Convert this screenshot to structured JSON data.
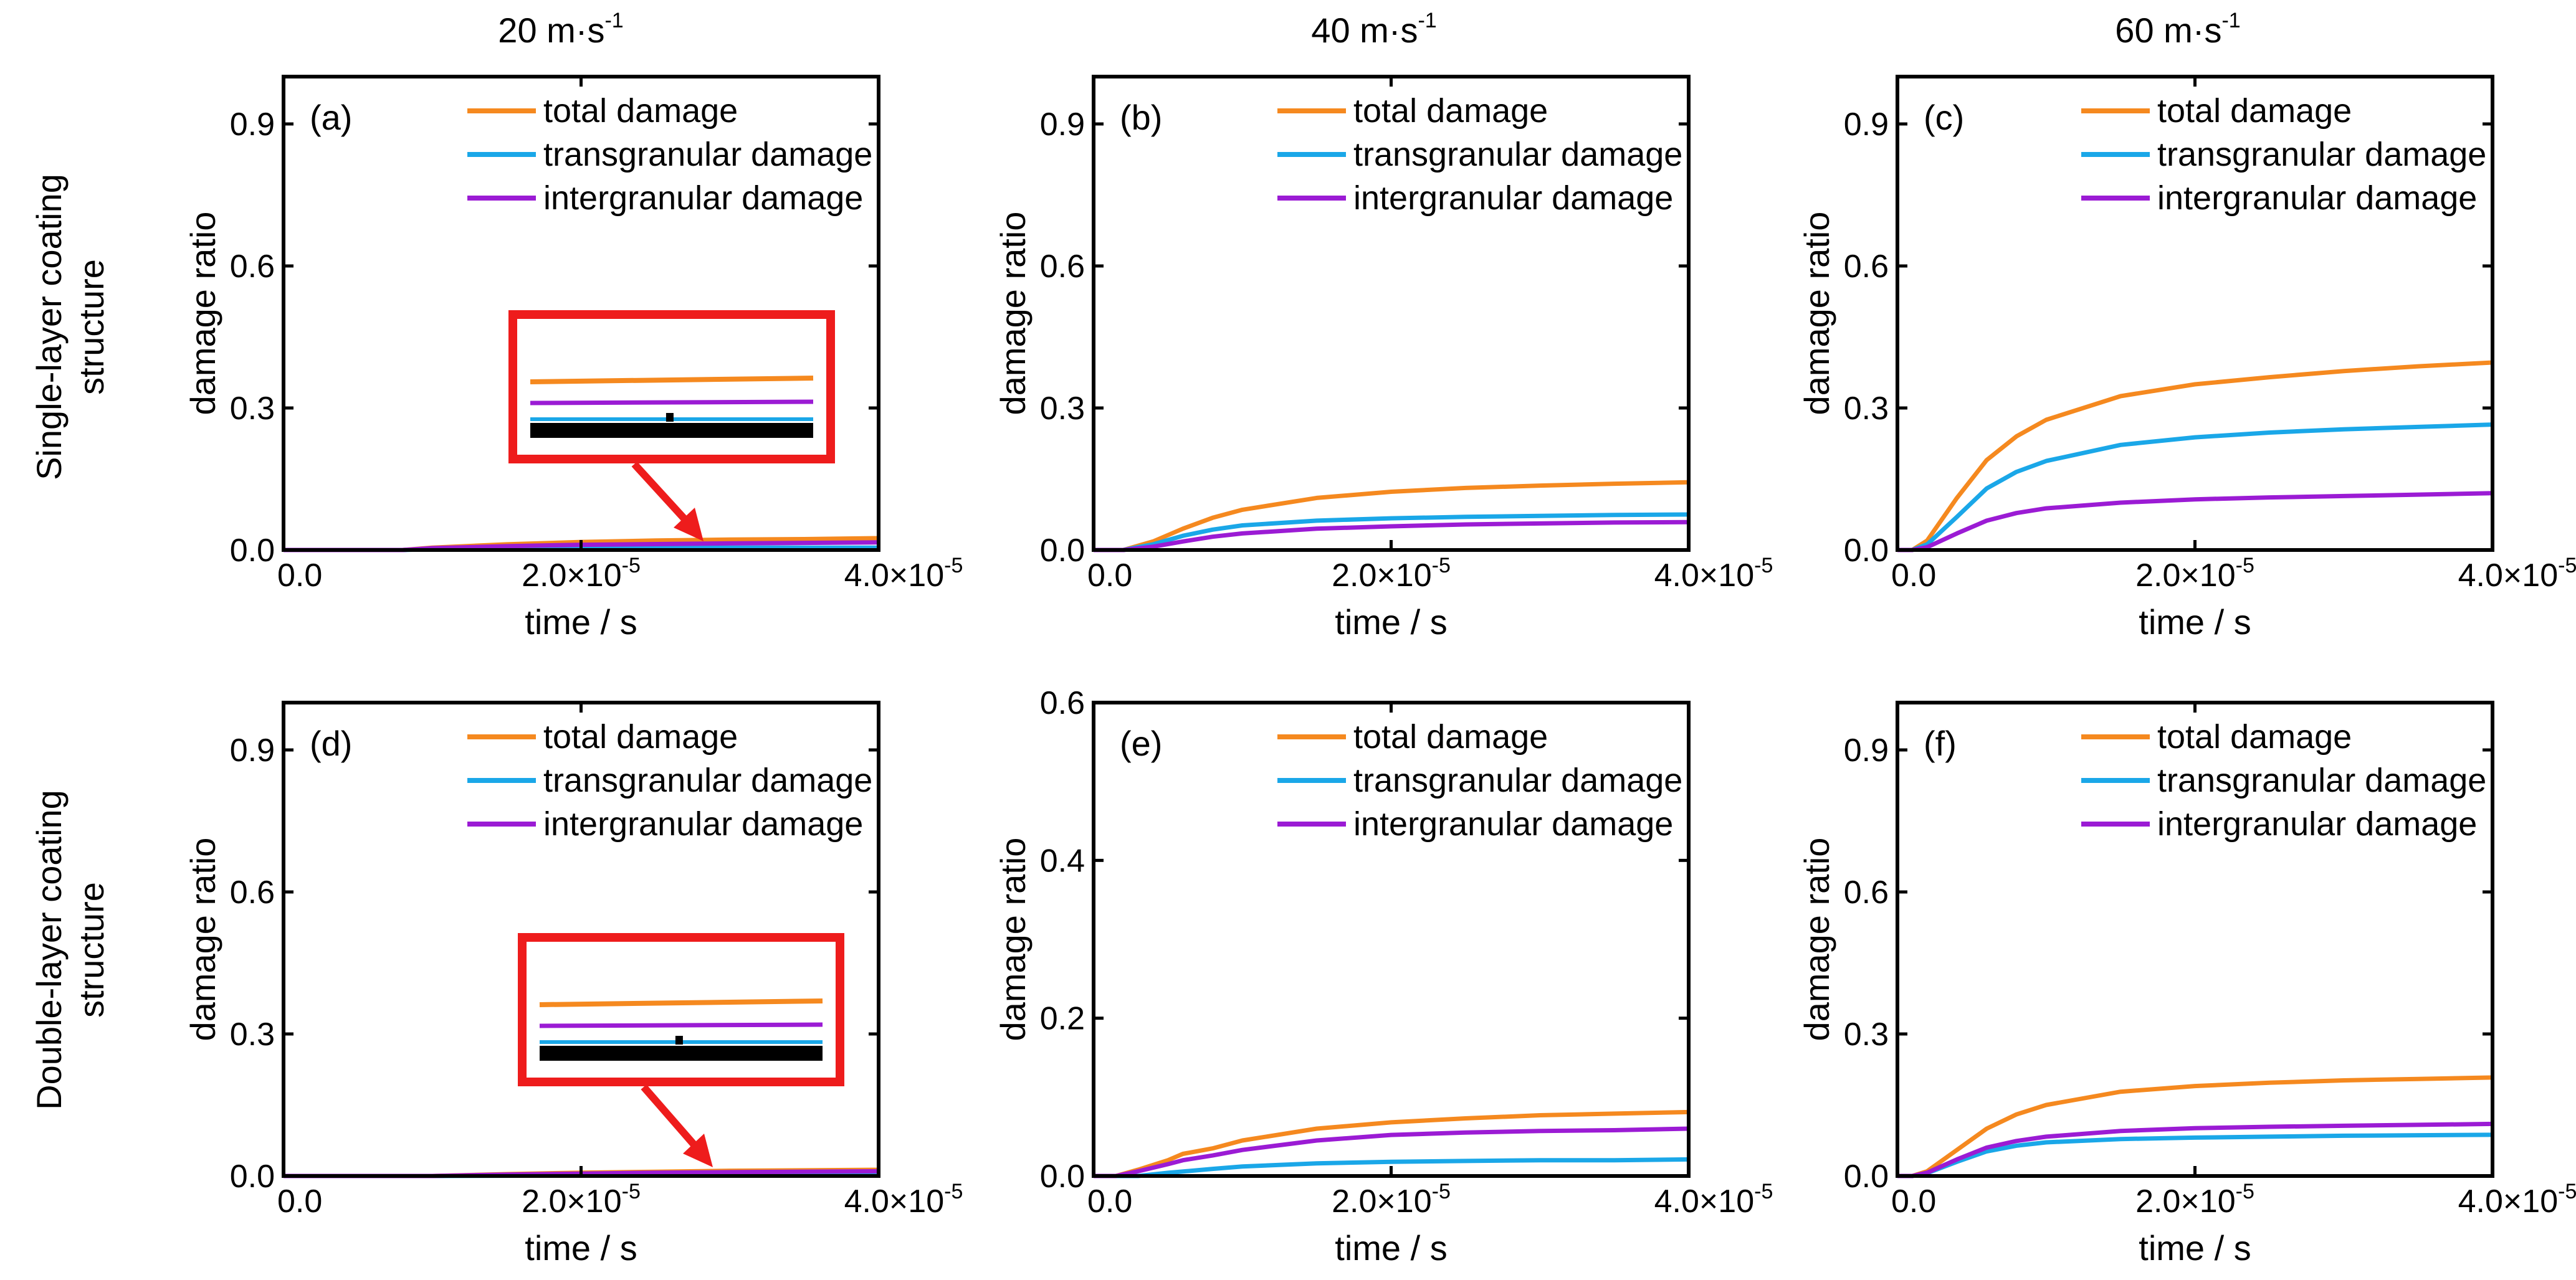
{
  "column_titles": [
    {
      "base": "20 m·s",
      "sup": "-1"
    },
    {
      "base": "40 m·s",
      "sup": "-1"
    },
    {
      "base": "60 m·s",
      "sup": "-1"
    }
  ],
  "row_titles": [
    [
      "Single-layer coating",
      "structure"
    ],
    [
      "Double-layer coating",
      "structure"
    ]
  ],
  "colors": {
    "total": "#f5891f",
    "transgranular": "#1aa7e8",
    "intergranular": "#9b1bd4",
    "inset": "#ee1c1c"
  },
  "chart_data": [
    {
      "id": "a",
      "letter": "(a)",
      "type": "line",
      "xlabel": "time / s",
      "ylabel": "damage ratio",
      "xlim": [
        0,
        4e-05
      ],
      "ylim": [
        0,
        1.0
      ],
      "xticks": [
        {
          "v": 0,
          "base": "0.0",
          "sup": ""
        },
        {
          "v": 2e-05,
          "base": "2.0×10",
          "sup": "-5"
        },
        {
          "v": 4e-05,
          "base": "4.0×10",
          "sup": "-5"
        }
      ],
      "yticks": [
        {
          "v": 0,
          "label": "0.0"
        },
        {
          "v": 0.3,
          "label": "0.3"
        },
        {
          "v": 0.6,
          "label": "0.6"
        },
        {
          "v": 0.9,
          "label": "0.9"
        }
      ],
      "legend": [
        "total damage",
        "transgranular damage",
        "intergranular damage"
      ],
      "inset": true,
      "series": [
        {
          "name": "total damage",
          "key": "total",
          "x": [
            0,
            8e-06,
            1e-05,
            1.5e-05,
            2e-05,
            2.5e-05,
            3e-05,
            3.5e-05,
            4e-05
          ],
          "y": [
            0,
            0,
            0.005,
            0.012,
            0.017,
            0.02,
            0.022,
            0.023,
            0.025
          ]
        },
        {
          "name": "transgranular damage",
          "key": "transgranular",
          "x": [
            0,
            8e-06,
            1e-05,
            2e-05,
            3e-05,
            4e-05
          ],
          "y": [
            0,
            0,
            0.002,
            0.004,
            0.005,
            0.005
          ]
        },
        {
          "name": "intergranular damage",
          "key": "intergranular",
          "x": [
            0,
            8e-06,
            1e-05,
            1.5e-05,
            2e-05,
            3e-05,
            4e-05
          ],
          "y": [
            0,
            0,
            0.004,
            0.008,
            0.011,
            0.014,
            0.016
          ]
        }
      ]
    },
    {
      "id": "b",
      "letter": "(b)",
      "type": "line",
      "xlabel": "time / s",
      "ylabel": "damage ratio",
      "xlim": [
        0,
        4e-05
      ],
      "ylim": [
        0,
        1.0
      ],
      "xticks": [
        {
          "v": 0,
          "base": "0.0",
          "sup": ""
        },
        {
          "v": 2e-05,
          "base": "2.0×10",
          "sup": "-5"
        },
        {
          "v": 4e-05,
          "base": "4.0×10",
          "sup": "-5"
        }
      ],
      "yticks": [
        {
          "v": 0,
          "label": "0.0"
        },
        {
          "v": 0.3,
          "label": "0.3"
        },
        {
          "v": 0.6,
          "label": "0.6"
        },
        {
          "v": 0.9,
          "label": "0.9"
        }
      ],
      "legend": [
        "total damage",
        "transgranular damage",
        "intergranular damage"
      ],
      "inset": false,
      "series": [
        {
          "name": "total damage",
          "key": "total",
          "x": [
            0,
            2e-06,
            4e-06,
            6e-06,
            8e-06,
            1e-05,
            1.5e-05,
            2e-05,
            2.5e-05,
            3e-05,
            3.5e-05,
            4e-05
          ],
          "y": [
            0,
            0,
            0.018,
            0.045,
            0.068,
            0.085,
            0.11,
            0.123,
            0.131,
            0.136,
            0.14,
            0.143
          ]
        },
        {
          "name": "transgranular damage",
          "key": "transgranular",
          "x": [
            0,
            2e-06,
            4e-06,
            6e-06,
            8e-06,
            1e-05,
            1.5e-05,
            2e-05,
            2.5e-05,
            3e-05,
            3.5e-05,
            4e-05
          ],
          "y": [
            0,
            0,
            0.012,
            0.03,
            0.043,
            0.052,
            0.062,
            0.067,
            0.07,
            0.072,
            0.074,
            0.075
          ]
        },
        {
          "name": "intergranular damage",
          "key": "intergranular",
          "x": [
            0,
            2e-06,
            4e-06,
            6e-06,
            8e-06,
            1e-05,
            1.5e-05,
            2e-05,
            2.5e-05,
            3e-05,
            3.5e-05,
            4e-05
          ],
          "y": [
            0,
            0,
            0.007,
            0.018,
            0.028,
            0.035,
            0.045,
            0.05,
            0.054,
            0.056,
            0.058,
            0.059
          ]
        }
      ]
    },
    {
      "id": "c",
      "letter": "(c)",
      "type": "line",
      "xlabel": "time / s",
      "ylabel": "damage ratio",
      "xlim": [
        0,
        4e-05
      ],
      "ylim": [
        0,
        1.0
      ],
      "xticks": [
        {
          "v": 0,
          "base": "0.0",
          "sup": ""
        },
        {
          "v": 2e-05,
          "base": "2.0×10",
          "sup": "-5"
        },
        {
          "v": 4e-05,
          "base": "4.0×10",
          "sup": "-5"
        }
      ],
      "yticks": [
        {
          "v": 0,
          "label": "0.0"
        },
        {
          "v": 0.3,
          "label": "0.3"
        },
        {
          "v": 0.6,
          "label": "0.6"
        },
        {
          "v": 0.9,
          "label": "0.9"
        }
      ],
      "legend": [
        "total damage",
        "transgranular damage",
        "intergranular damage"
      ],
      "inset": false,
      "series": [
        {
          "name": "total damage",
          "key": "total",
          "x": [
            0,
            1e-06,
            2e-06,
            4e-06,
            6e-06,
            8e-06,
            1e-05,
            1.5e-05,
            2e-05,
            2.5e-05,
            3e-05,
            3.5e-05,
            4e-05
          ],
          "y": [
            0,
            0,
            0.02,
            0.11,
            0.19,
            0.24,
            0.275,
            0.325,
            0.35,
            0.365,
            0.378,
            0.388,
            0.396
          ]
        },
        {
          "name": "transgranular damage",
          "key": "transgranular",
          "x": [
            0,
            1e-06,
            2e-06,
            4e-06,
            6e-06,
            8e-06,
            1e-05,
            1.5e-05,
            2e-05,
            2.5e-05,
            3e-05,
            3.5e-05,
            4e-05
          ],
          "y": [
            0,
            0,
            0.012,
            0.07,
            0.13,
            0.165,
            0.188,
            0.222,
            0.238,
            0.248,
            0.255,
            0.26,
            0.265
          ]
        },
        {
          "name": "intergranular damage",
          "key": "intergranular",
          "x": [
            0,
            1e-06,
            2e-06,
            4e-06,
            6e-06,
            8e-06,
            1e-05,
            1.5e-05,
            2e-05,
            2.5e-05,
            3e-05,
            3.5e-05,
            4e-05
          ],
          "y": [
            0,
            0,
            0.006,
            0.035,
            0.062,
            0.078,
            0.088,
            0.1,
            0.107,
            0.111,
            0.114,
            0.117,
            0.12
          ]
        }
      ]
    },
    {
      "id": "d",
      "letter": "(d)",
      "type": "line",
      "xlabel": "time / s",
      "ylabel": "damage ratio",
      "xlim": [
        0,
        4e-05
      ],
      "ylim": [
        0,
        1.0
      ],
      "xticks": [
        {
          "v": 0,
          "base": "0.0",
          "sup": ""
        },
        {
          "v": 2e-05,
          "base": "2.0×10",
          "sup": "-5"
        },
        {
          "v": 4e-05,
          "base": "4.0×10",
          "sup": "-5"
        }
      ],
      "yticks": [
        {
          "v": 0,
          "label": "0.0"
        },
        {
          "v": 0.3,
          "label": "0.3"
        },
        {
          "v": 0.6,
          "label": "0.6"
        },
        {
          "v": 0.9,
          "label": "0.9"
        }
      ],
      "legend": [
        "total damage",
        "transgranular damage",
        "intergranular damage"
      ],
      "inset": true,
      "series": [
        {
          "name": "total damage",
          "key": "total",
          "x": [
            0,
            1e-05,
            1.5e-05,
            2e-05,
            2.5e-05,
            3e-05,
            3.5e-05,
            4e-05
          ],
          "y": [
            0,
            0,
            0.004,
            0.007,
            0.009,
            0.011,
            0.012,
            0.013
          ]
        },
        {
          "name": "transgranular damage",
          "key": "transgranular",
          "x": [
            0,
            1e-05,
            2e-05,
            3e-05,
            4e-05
          ],
          "y": [
            0,
            0,
            0.001,
            0.002,
            0.002
          ]
        },
        {
          "name": "intergranular damage",
          "key": "intergranular",
          "x": [
            0,
            1e-05,
            1.5e-05,
            2e-05,
            2.5e-05,
            3e-05,
            4e-05
          ],
          "y": [
            0,
            0,
            0.003,
            0.005,
            0.007,
            0.008,
            0.01
          ]
        }
      ]
    },
    {
      "id": "e",
      "letter": "(e)",
      "type": "line",
      "xlabel": "time / s",
      "ylabel": "damage ratio",
      "xlim": [
        0,
        4e-05
      ],
      "ylim": [
        0,
        0.6
      ],
      "xticks": [
        {
          "v": 0,
          "base": "0.0",
          "sup": ""
        },
        {
          "v": 2e-05,
          "base": "2.0×10",
          "sup": "-5"
        },
        {
          "v": 4e-05,
          "base": "4.0×10",
          "sup": "-5"
        }
      ],
      "yticks": [
        {
          "v": 0,
          "label": "0.0"
        },
        {
          "v": 0.2,
          "label": "0.2"
        },
        {
          "v": 0.4,
          "label": "0.4"
        },
        {
          "v": 0.6,
          "label": "0.6"
        }
      ],
      "legend": [
        "total damage",
        "transgranular damage",
        "intergranular damage"
      ],
      "inset": false,
      "series": [
        {
          "name": "total damage",
          "key": "total",
          "x": [
            0,
            1.5e-06,
            3e-06,
            5e-06,
            6e-06,
            8e-06,
            1e-05,
            1.5e-05,
            2e-05,
            2.5e-05,
            3e-05,
            3.5e-05,
            4e-05
          ],
          "y": [
            0,
            0,
            0.008,
            0.02,
            0.028,
            0.035,
            0.045,
            0.06,
            0.068,
            0.073,
            0.077,
            0.079,
            0.081
          ]
        },
        {
          "name": "transgranular damage",
          "key": "transgranular",
          "x": [
            0,
            3e-06,
            5e-06,
            8e-06,
            1e-05,
            1.5e-05,
            2e-05,
            2.5e-05,
            3e-05,
            3.5e-05,
            4e-05
          ],
          "y": [
            0,
            0,
            0.004,
            0.009,
            0.012,
            0.016,
            0.018,
            0.019,
            0.02,
            0.02,
            0.021
          ]
        },
        {
          "name": "intergranular damage",
          "key": "intergranular",
          "x": [
            0,
            1.5e-06,
            3e-06,
            5e-06,
            6e-06,
            8e-06,
            1e-05,
            1.5e-05,
            2e-05,
            2.5e-05,
            3e-05,
            3.5e-05,
            4e-05
          ],
          "y": [
            0,
            0,
            0.006,
            0.015,
            0.02,
            0.026,
            0.033,
            0.045,
            0.052,
            0.055,
            0.057,
            0.058,
            0.06
          ]
        }
      ]
    },
    {
      "id": "f",
      "letter": "(f)",
      "type": "line",
      "xlabel": "time / s",
      "ylabel": "damage ratio",
      "xlim": [
        0,
        4e-05
      ],
      "ylim": [
        0,
        1.0
      ],
      "xticks": [
        {
          "v": 0,
          "base": "0.0",
          "sup": ""
        },
        {
          "v": 2e-05,
          "base": "2.0×10",
          "sup": "-5"
        },
        {
          "v": 4e-05,
          "base": "4.0×10",
          "sup": "-5"
        }
      ],
      "yticks": [
        {
          "v": 0,
          "label": "0.0"
        },
        {
          "v": 0.3,
          "label": "0.3"
        },
        {
          "v": 0.6,
          "label": "0.6"
        },
        {
          "v": 0.9,
          "label": "0.9"
        }
      ],
      "legend": [
        "total damage",
        "transgranular damage",
        "intergranular damage"
      ],
      "inset": false,
      "series": [
        {
          "name": "total damage",
          "key": "total",
          "x": [
            0,
            1e-06,
            2e-06,
            4e-06,
            6e-06,
            8e-06,
            1e-05,
            1.5e-05,
            2e-05,
            2.5e-05,
            3e-05,
            3.5e-05,
            4e-05
          ],
          "y": [
            0,
            0,
            0.01,
            0.055,
            0.1,
            0.13,
            0.15,
            0.178,
            0.19,
            0.197,
            0.202,
            0.205,
            0.208
          ]
        },
        {
          "name": "transgranular damage",
          "key": "transgranular",
          "x": [
            0,
            1e-06,
            2e-06,
            4e-06,
            6e-06,
            8e-06,
            1e-05,
            1.5e-05,
            2e-05,
            2.5e-05,
            3e-05,
            3.5e-05,
            4e-05
          ],
          "y": [
            0,
            0,
            0.006,
            0.03,
            0.052,
            0.064,
            0.071,
            0.078,
            0.081,
            0.083,
            0.085,
            0.086,
            0.087
          ]
        },
        {
          "name": "intergranular damage",
          "key": "intergranular",
          "x": [
            0,
            1e-06,
            2e-06,
            4e-06,
            6e-06,
            8e-06,
            1e-05,
            1.5e-05,
            2e-05,
            2.5e-05,
            3e-05,
            3.5e-05,
            4e-05
          ],
          "y": [
            0,
            0,
            0.007,
            0.035,
            0.06,
            0.074,
            0.083,
            0.095,
            0.101,
            0.104,
            0.106,
            0.108,
            0.11
          ]
        }
      ]
    }
  ]
}
